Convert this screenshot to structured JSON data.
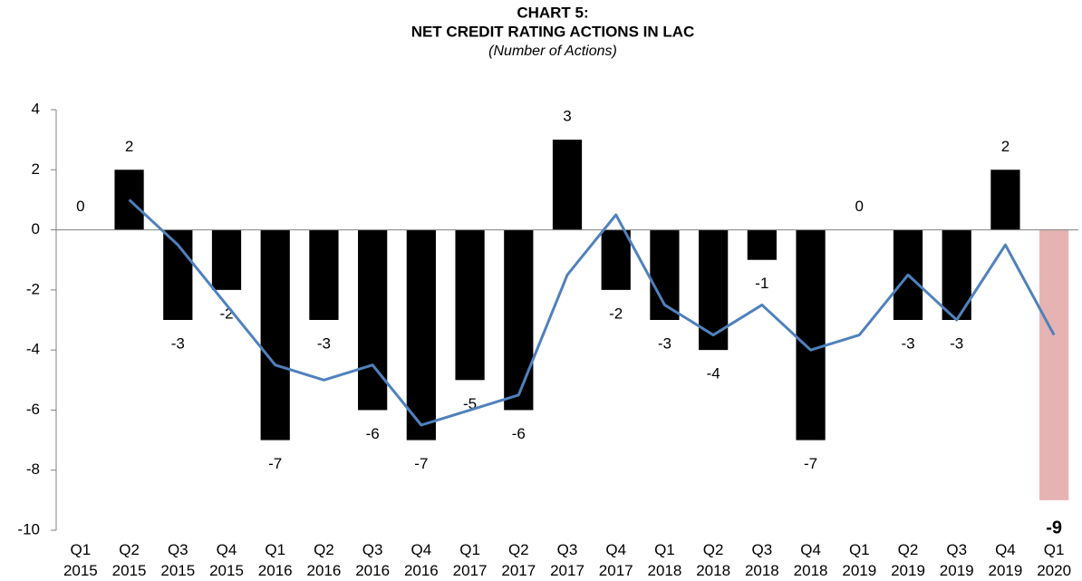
{
  "chart_data": {
    "type": "bar",
    "title": "CHART 5:",
    "subtitle": "NET CREDIT RATING ACTIONS IN LAC",
    "units_note": "(Number of Actions)",
    "categories": [
      "Q1 2015",
      "Q2 2015",
      "Q3 2015",
      "Q4 2015",
      "Q1 2016",
      "Q2 2016",
      "Q3 2016",
      "Q4 2016",
      "Q1 2017",
      "Q2 2017",
      "Q3 2017",
      "Q4 2017",
      "Q1 2018",
      "Q2 2018",
      "Q3 2018",
      "Q4 2018",
      "Q1 2019",
      "Q2 2019",
      "Q3 2019",
      "Q4 2019",
      "Q1 2020"
    ],
    "series": [
      {
        "type": "bar",
        "values": [
          0,
          2,
          -3,
          -2,
          -7,
          -3,
          -6,
          -7,
          -5,
          -6,
          3,
          -2,
          -3,
          -4,
          -1,
          -7,
          0,
          -3,
          -3,
          2,
          -9
        ],
        "colors": [
          "#000000",
          "#000000",
          "#000000",
          "#000000",
          "#000000",
          "#000000",
          "#000000",
          "#000000",
          "#000000",
          "#000000",
          "#000000",
          "#000000",
          "#000000",
          "#000000",
          "#000000",
          "#000000",
          "#000000",
          "#000000",
          "#000000",
          "#000000",
          "#e6b3b3"
        ]
      },
      {
        "type": "line",
        "color": "#4f81bd",
        "values": [
          null,
          1,
          -0.5,
          -2.5,
          -4.5,
          -5,
          -4.5,
          -6.5,
          -6,
          -5.5,
          -1.5,
          0.5,
          -2.5,
          -3.5,
          -2.5,
          -4,
          -3.5,
          -1.5,
          -3,
          -0.5,
          -3.5
        ]
      }
    ],
    "ylim": [
      -10,
      4
    ],
    "yticks": [
      -10,
      -8,
      -6,
      -4,
      -2,
      0,
      2,
      4
    ],
    "grid": false
  }
}
